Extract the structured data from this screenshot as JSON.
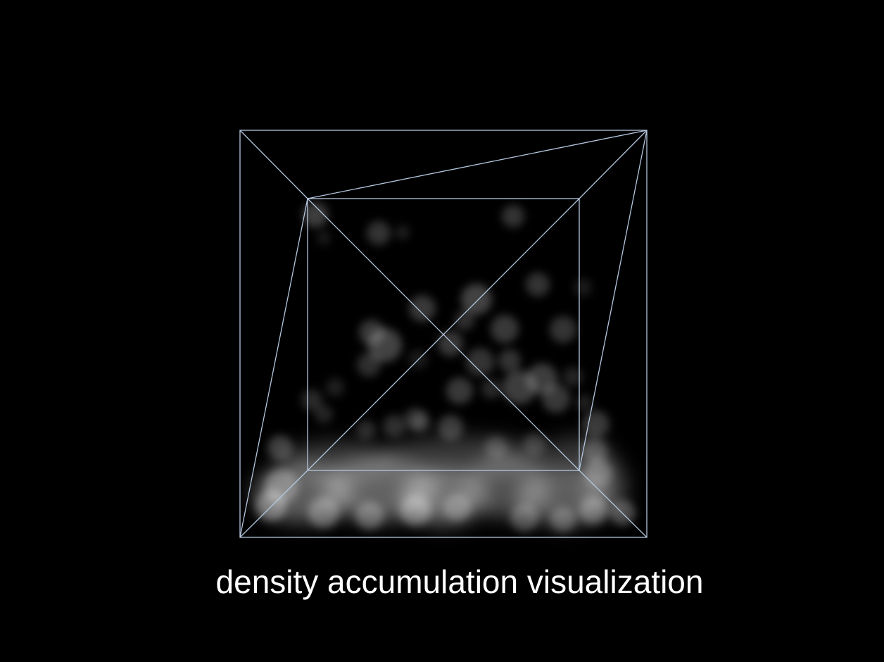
{
  "caption": "density accumulation visualization",
  "colors": {
    "background": "#000000",
    "wireframe": "#b4c6de",
    "particle": "#ffffff",
    "caption_text": "#ffffff"
  }
}
